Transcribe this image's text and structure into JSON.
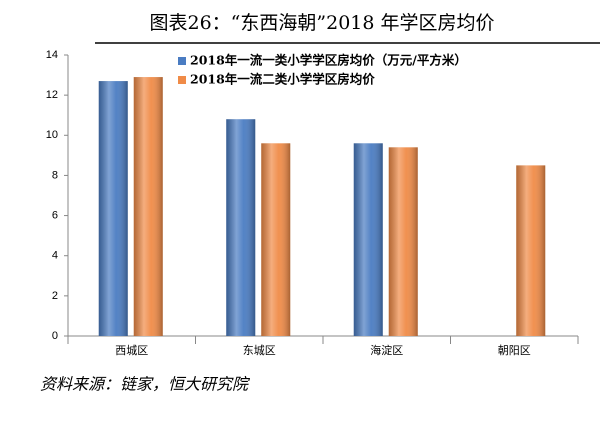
{
  "chart_data": {
    "type": "bar",
    "title": "图表26：“东西海朝”2018 年学区房均价",
    "source": "资料来源：链家，恒大研究院",
    "categories": [
      "西城区",
      "东城区",
      "海淀区",
      "朝阳区"
    ],
    "series": [
      {
        "name": "2018年一流一类小学学区房均价（万元/平方米）",
        "color": "#4a7cc2",
        "values": [
          12.7,
          10.8,
          9.6,
          null
        ]
      },
      {
        "name": "2018年一流二类小学学区房均价",
        "color": "#f08b47",
        "values": [
          12.9,
          9.6,
          9.4,
          8.5
        ]
      }
    ],
    "ylim": [
      0,
      14
    ],
    "yticks": [
      0,
      2,
      4,
      6,
      8,
      10,
      12,
      14
    ],
    "grid": false
  }
}
